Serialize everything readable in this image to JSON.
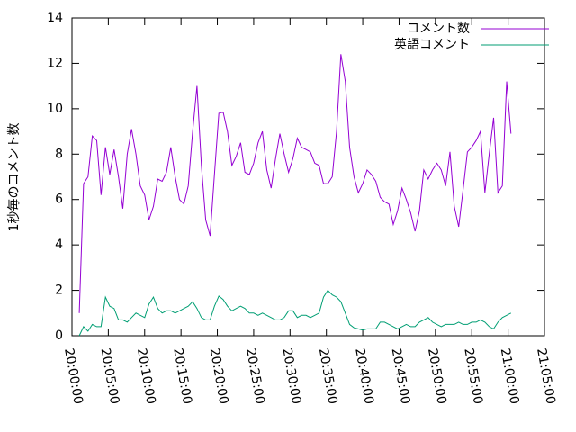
{
  "chart_data": {
    "type": "line",
    "ylabel": "1秒毎のコメント数",
    "x": [
      "20:01:00",
      "20:01:36",
      "20:02:12",
      "20:02:48",
      "20:03:24",
      "20:04:00",
      "20:04:36",
      "20:05:12",
      "20:05:48",
      "20:06:24",
      "20:07:00",
      "20:07:36",
      "20:08:12",
      "20:08:48",
      "20:09:24",
      "20:10:00",
      "20:10:36",
      "20:11:12",
      "20:11:48",
      "20:12:24",
      "20:13:00",
      "20:13:36",
      "20:14:12",
      "20:14:48",
      "20:15:24",
      "20:16:00",
      "20:16:36",
      "20:17:12",
      "20:17:48",
      "20:18:24",
      "20:19:00",
      "20:19:36",
      "20:20:12",
      "20:20:48",
      "20:21:24",
      "20:22:00",
      "20:22:36",
      "20:23:12",
      "20:23:48",
      "20:24:24",
      "20:25:00",
      "20:25:36",
      "20:26:12",
      "20:26:48",
      "20:27:24",
      "20:28:00",
      "20:28:36",
      "20:29:12",
      "20:29:48",
      "20:30:24",
      "20:31:00",
      "20:31:36",
      "20:32:12",
      "20:32:48",
      "20:33:24",
      "20:34:00",
      "20:34:36",
      "20:35:12",
      "20:35:48",
      "20:36:24",
      "20:37:00",
      "20:37:36",
      "20:38:12",
      "20:38:48",
      "20:39:24",
      "20:40:00",
      "20:40:36",
      "20:41:12",
      "20:41:48",
      "20:42:24",
      "20:43:00",
      "20:43:36",
      "20:44:12",
      "20:44:48",
      "20:45:24",
      "20:46:00",
      "20:46:36",
      "20:47:12",
      "20:47:48",
      "20:48:24",
      "20:49:00",
      "20:49:36",
      "20:50:12",
      "20:50:48",
      "20:51:24",
      "20:52:00",
      "20:52:36",
      "20:53:12",
      "20:53:48",
      "20:54:24",
      "20:55:00",
      "20:55:36",
      "20:56:12",
      "20:56:48",
      "20:57:24",
      "20:58:00",
      "20:58:36",
      "20:59:12",
      "20:59:48",
      "21:00:24"
    ],
    "series": [
      {
        "name": "コメント数",
        "color": "#9400d3",
        "values": [
          1.0,
          6.7,
          7.0,
          8.8,
          8.6,
          6.2,
          8.3,
          7.1,
          8.2,
          7.0,
          5.6,
          8.0,
          9.1,
          8.0,
          6.6,
          6.2,
          5.1,
          5.7,
          6.9,
          6.8,
          7.2,
          8.3,
          7.0,
          6.0,
          5.8,
          6.6,
          9.0,
          11.0,
          7.5,
          5.1,
          4.4,
          7.1,
          9.8,
          9.85,
          9.0,
          7.5,
          7.9,
          8.5,
          7.2,
          7.1,
          7.6,
          8.5,
          9.0,
          7.3,
          6.5,
          7.8,
          8.9,
          8.0,
          7.2,
          7.8,
          8.7,
          8.3,
          8.2,
          8.1,
          7.6,
          7.5,
          6.7,
          6.7,
          7.0,
          9.0,
          12.4,
          11.2,
          8.3,
          7.0,
          6.3,
          6.7,
          7.3,
          7.1,
          6.8,
          6.1,
          5.9,
          5.8,
          4.9,
          5.5,
          6.5,
          6.0,
          5.4,
          4.6,
          5.5,
          7.3,
          6.9,
          7.3,
          7.6,
          7.3,
          6.6,
          8.1,
          5.7,
          4.8,
          6.4,
          8.1,
          8.3,
          8.6,
          9.0,
          6.3,
          8.0,
          9.6,
          6.3,
          6.6,
          11.2,
          8.9
        ]
      },
      {
        "name": "英語コメント",
        "color": "#009e73",
        "values": [
          0.0,
          0.4,
          0.2,
          0.5,
          0.4,
          0.4,
          1.7,
          1.3,
          1.2,
          0.7,
          0.7,
          0.6,
          0.8,
          1.0,
          0.9,
          0.8,
          1.4,
          1.7,
          1.2,
          1.0,
          1.1,
          1.1,
          1.0,
          1.1,
          1.2,
          1.3,
          1.5,
          1.2,
          0.8,
          0.7,
          0.7,
          1.3,
          1.75,
          1.6,
          1.3,
          1.1,
          1.2,
          1.3,
          1.2,
          1.0,
          1.0,
          0.9,
          1.0,
          0.9,
          0.8,
          0.7,
          0.7,
          0.8,
          1.1,
          1.1,
          0.8,
          0.9,
          0.9,
          0.8,
          0.9,
          1.0,
          1.7,
          2.0,
          1.8,
          1.7,
          1.5,
          1.0,
          0.5,
          0.35,
          0.3,
          0.25,
          0.3,
          0.3,
          0.3,
          0.6,
          0.6,
          0.5,
          0.4,
          0.3,
          0.4,
          0.5,
          0.4,
          0.4,
          0.6,
          0.7,
          0.8,
          0.6,
          0.5,
          0.4,
          0.5,
          0.5,
          0.5,
          0.6,
          0.5,
          0.5,
          0.6,
          0.6,
          0.7,
          0.6,
          0.4,
          0.3,
          0.6,
          0.8,
          0.9,
          1.0
        ]
      }
    ],
    "xlim": [
      "20:00:00",
      "21:05:00"
    ],
    "xticks": [
      "20:00:00",
      "20:05:00",
      "20:10:00",
      "20:15:00",
      "20:20:00",
      "20:25:00",
      "20:30:00",
      "20:35:00",
      "20:40:00",
      "20:45:00",
      "20:50:00",
      "20:55:00",
      "21:00:00",
      "21:05:00"
    ],
    "ylim": [
      0,
      14
    ],
    "yticks": [
      0,
      2,
      4,
      6,
      8,
      10,
      12,
      14
    ],
    "legend": "top-right"
  }
}
